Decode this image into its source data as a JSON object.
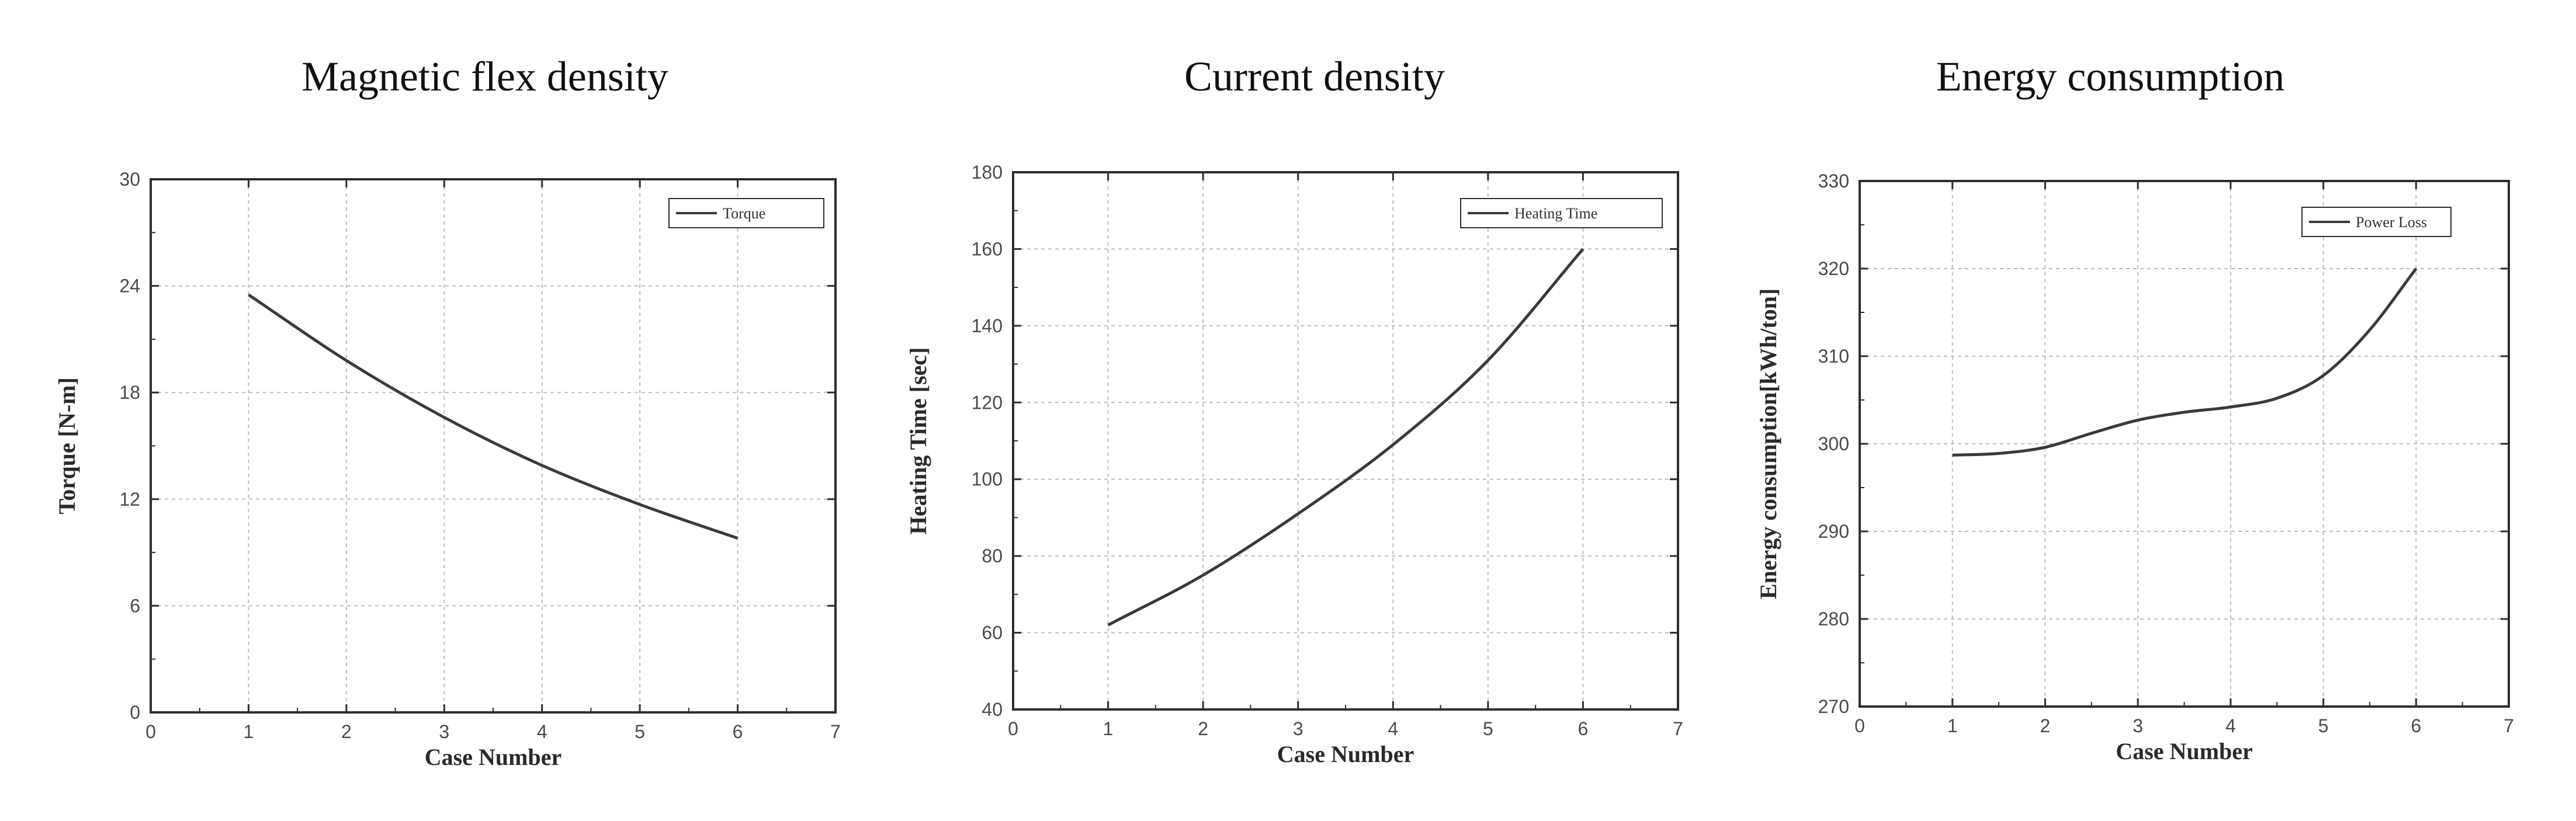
{
  "chart_data": [
    {
      "type": "line",
      "title": "Magnetic flex density",
      "xlabel": "Case Number",
      "ylabel": "Torque [N-m]",
      "xlim": [
        0,
        7
      ],
      "ylim": [
        0,
        30
      ],
      "xticks": [
        "0",
        "1",
        "2",
        "3",
        "4",
        "5",
        "6",
        "7"
      ],
      "yticks": [
        "0",
        "6",
        "12",
        "18",
        "24",
        "30"
      ],
      "grid": true,
      "legend_position": "top-right",
      "series": [
        {
          "name": "Torque",
          "x": [
            1,
            2,
            3,
            4,
            5,
            6
          ],
          "values": [
            23.5,
            19.8,
            16.6,
            13.9,
            11.7,
            9.8
          ]
        }
      ]
    },
    {
      "type": "line",
      "title": "Current density",
      "xlabel": "Case Number",
      "ylabel": "Heating Time [sec]",
      "xlim": [
        0,
        7
      ],
      "ylim": [
        40,
        180
      ],
      "xticks": [
        "0",
        "1",
        "2",
        "3",
        "4",
        "5",
        "6",
        "7"
      ],
      "yticks": [
        "40",
        "60",
        "80",
        "100",
        "120",
        "140",
        "160",
        "180"
      ],
      "grid": true,
      "legend_position": "top-right",
      "series": [
        {
          "name": "Heating Time",
          "x": [
            1,
            2,
            3,
            4,
            5,
            6
          ],
          "values": [
            62,
            75,
            91,
            109,
            131,
            160
          ]
        }
      ]
    },
    {
      "type": "line",
      "title": "Energy consumption",
      "xlabel": "Case Number",
      "ylabel": "Energy consumption[kWh/ton]",
      "xlim": [
        0,
        7
      ],
      "ylim": [
        270,
        330
      ],
      "xticks": [
        "0",
        "1",
        "2",
        "3",
        "4",
        "5",
        "6",
        "7"
      ],
      "yticks": [
        "270",
        "280",
        "290",
        "300",
        "310",
        "320",
        "330"
      ],
      "grid": true,
      "legend_position": "top-right",
      "series": [
        {
          "name": "Power Loss",
          "x": [
            1,
            1.5,
            2,
            2.5,
            3,
            3.5,
            4,
            4.5,
            5,
            5.5,
            6
          ],
          "values": [
            298.7,
            298.9,
            299.6,
            301.2,
            302.7,
            303.6,
            304.2,
            305.2,
            307.8,
            313.0,
            320.0
          ]
        }
      ]
    }
  ],
  "colors": {
    "line": "#3a3a3a",
    "grid": "#bdbdbd",
    "frame": "#2e2e2e"
  }
}
